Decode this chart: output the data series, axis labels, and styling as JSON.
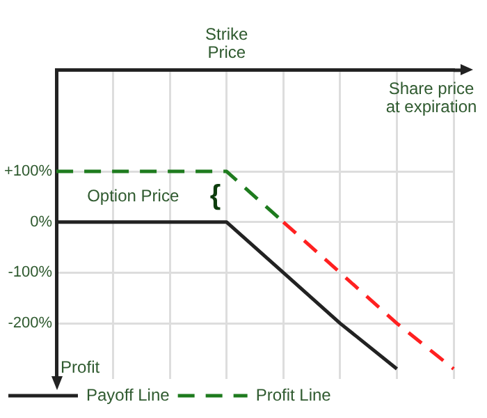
{
  "chart_data": {
    "type": "line",
    "xlabel": "Share price at expiration",
    "ylabel": "Profit",
    "categories": [
      null,
      null,
      null,
      null,
      null,
      null,
      null,
      null
    ],
    "ylim": [
      -310,
      300
    ],
    "yticks": [
      {
        "value": 100,
        "label": "+100%"
      },
      {
        "value": 0,
        "label": "0%"
      },
      {
        "value": -100,
        "label": "-100%"
      },
      {
        "value": -200,
        "label": "-200%"
      }
    ],
    "series": [
      {
        "name": "Payoff Line",
        "color": "#222222",
        "values": [
          0,
          0,
          0,
          0,
          -100,
          -200,
          -290,
          null
        ],
        "line_style": "solid"
      },
      {
        "name": "Profit Line",
        "color": "#1e7b1e",
        "values": [
          100,
          100,
          100,
          100,
          0,
          null,
          null,
          null
        ],
        "line_style": "dashed"
      },
      {
        "color": "#ff2020",
        "values": [
          null,
          null,
          null,
          null,
          0,
          -100,
          -200,
          -290
        ],
        "line_style": "dashed"
      }
    ],
    "annotations": [
      "Strike Price",
      "Option Price",
      "{"
    ],
    "grid": true,
    "legend": "bottom left",
    "marker": "none"
  }
}
